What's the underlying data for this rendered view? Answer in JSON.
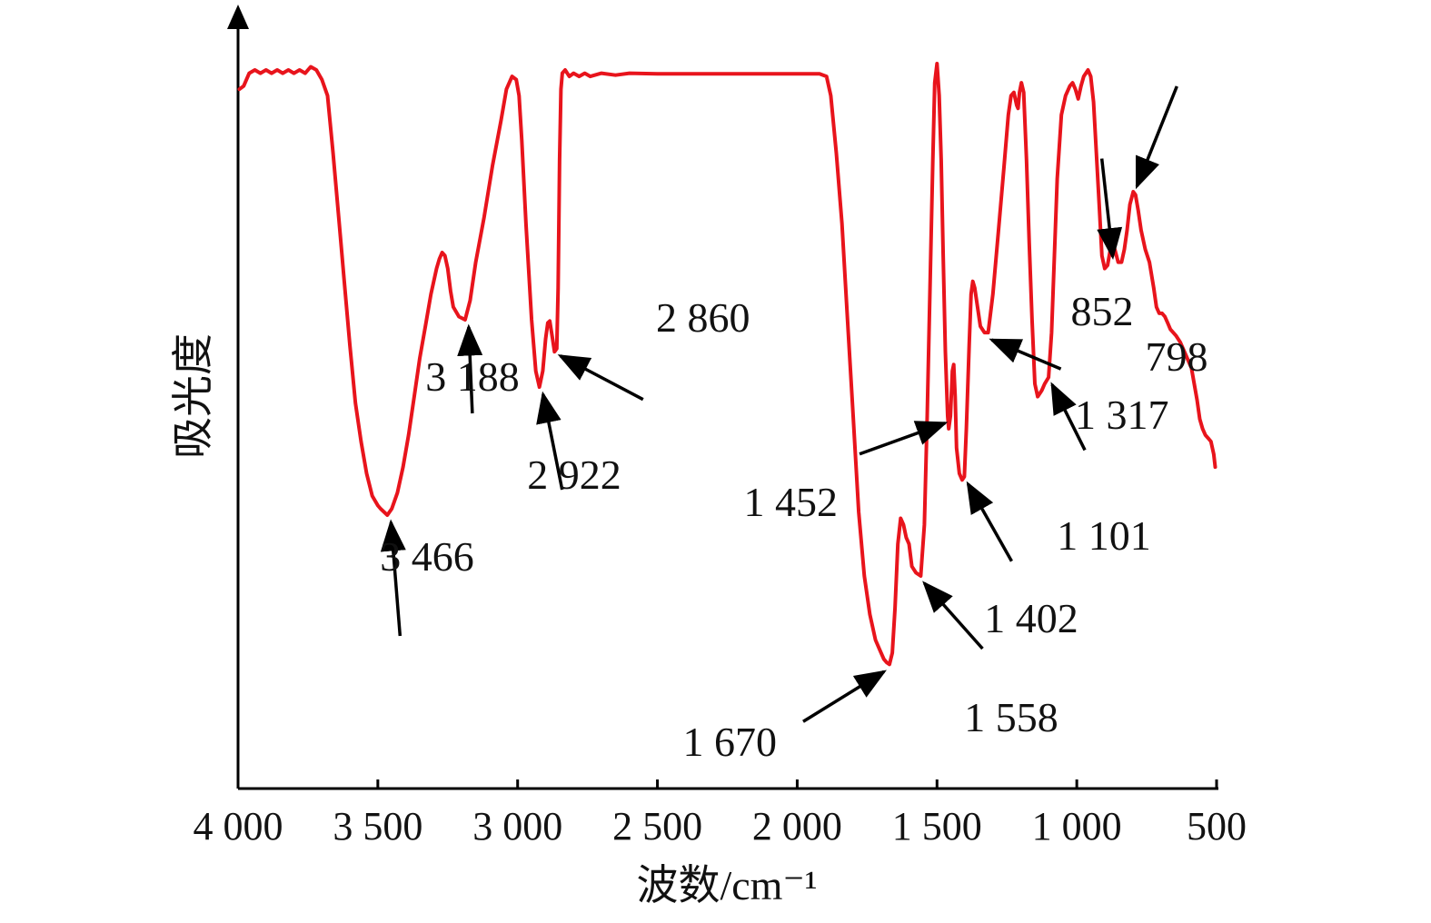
{
  "chart_data": {
    "type": "line",
    "title": "",
    "xlabel": "波数/cm⁻¹",
    "ylabel": "吸光度",
    "xlim": [
      4000,
      500
    ],
    "x_reversed": true,
    "y_ticks_shown": false,
    "grid": false,
    "x_ticks": [
      {
        "value": 4000,
        "label": "4 000"
      },
      {
        "value": 3500,
        "label": "3 500"
      },
      {
        "value": 3000,
        "label": "3 000"
      },
      {
        "value": 2500,
        "label": "2 500"
      },
      {
        "value": 2000,
        "label": "2 000"
      },
      {
        "value": 1500,
        "label": "1 500"
      },
      {
        "value": 1000,
        "label": "1 000"
      },
      {
        "value": 500,
        "label": "500"
      }
    ],
    "series": [
      {
        "color": "#e8141c",
        "points": [
          [
            3995,
            0.96
          ],
          [
            3980,
            0.965
          ],
          [
            3960,
            0.985
          ],
          [
            3940,
            0.99
          ],
          [
            3920,
            0.985
          ],
          [
            3900,
            0.99
          ],
          [
            3880,
            0.985
          ],
          [
            3860,
            0.99
          ],
          [
            3840,
            0.985
          ],
          [
            3820,
            0.99
          ],
          [
            3800,
            0.985
          ],
          [
            3780,
            0.99
          ],
          [
            3760,
            0.985
          ],
          [
            3740,
            0.995
          ],
          [
            3720,
            0.99
          ],
          [
            3700,
            0.975
          ],
          [
            3680,
            0.95
          ],
          [
            3660,
            0.86
          ],
          [
            3640,
            0.76
          ],
          [
            3620,
            0.66
          ],
          [
            3600,
            0.56
          ],
          [
            3580,
            0.47
          ],
          [
            3560,
            0.41
          ],
          [
            3540,
            0.36
          ],
          [
            3520,
            0.325
          ],
          [
            3500,
            0.31
          ],
          [
            3490,
            0.305
          ],
          [
            3466,
            0.295
          ],
          [
            3450,
            0.305
          ],
          [
            3430,
            0.33
          ],
          [
            3410,
            0.37
          ],
          [
            3390,
            0.42
          ],
          [
            3370,
            0.48
          ],
          [
            3350,
            0.54
          ],
          [
            3330,
            0.59
          ],
          [
            3310,
            0.64
          ],
          [
            3290,
            0.68
          ],
          [
            3280,
            0.695
          ],
          [
            3270,
            0.705
          ],
          [
            3260,
            0.7
          ],
          [
            3250,
            0.68
          ],
          [
            3240,
            0.645
          ],
          [
            3230,
            0.62
          ],
          [
            3210,
            0.605
          ],
          [
            3188,
            0.6
          ],
          [
            3170,
            0.63
          ],
          [
            3150,
            0.69
          ],
          [
            3120,
            0.76
          ],
          [
            3090,
            0.84
          ],
          [
            3060,
            0.91
          ],
          [
            3040,
            0.96
          ],
          [
            3020,
            0.98
          ],
          [
            3005,
            0.975
          ],
          [
            2995,
            0.95
          ],
          [
            2985,
            0.88
          ],
          [
            2970,
            0.75
          ],
          [
            2950,
            0.6
          ],
          [
            2935,
            0.52
          ],
          [
            2922,
            0.495
          ],
          [
            2910,
            0.52
          ],
          [
            2900,
            0.57
          ],
          [
            2892,
            0.595
          ],
          [
            2885,
            0.598
          ],
          [
            2875,
            0.57
          ],
          [
            2868,
            0.55
          ],
          [
            2860,
            0.555
          ],
          [
            2855,
            0.65
          ],
          [
            2850,
            0.85
          ],
          [
            2845,
            0.96
          ],
          [
            2840,
            0.985
          ],
          [
            2830,
            0.99
          ],
          [
            2815,
            0.98
          ],
          [
            2800,
            0.985
          ],
          [
            2780,
            0.98
          ],
          [
            2760,
            0.985
          ],
          [
            2740,
            0.98
          ],
          [
            2700,
            0.985
          ],
          [
            2650,
            0.982
          ],
          [
            2600,
            0.985
          ],
          [
            2500,
            0.984
          ],
          [
            2400,
            0.984
          ],
          [
            2300,
            0.984
          ],
          [
            2200,
            0.984
          ],
          [
            2100,
            0.984
          ],
          [
            2000,
            0.984
          ],
          [
            1920,
            0.984
          ],
          [
            1895,
            0.98
          ],
          [
            1880,
            0.95
          ],
          [
            1860,
            0.86
          ],
          [
            1840,
            0.75
          ],
          [
            1820,
            0.6
          ],
          [
            1800,
            0.45
          ],
          [
            1780,
            0.3
          ],
          [
            1760,
            0.2
          ],
          [
            1740,
            0.14
          ],
          [
            1720,
            0.1
          ],
          [
            1700,
            0.08
          ],
          [
            1690,
            0.07
          ],
          [
            1680,
            0.065
          ],
          [
            1670,
            0.062
          ],
          [
            1660,
            0.08
          ],
          [
            1650,
            0.15
          ],
          [
            1640,
            0.25
          ],
          [
            1630,
            0.29
          ],
          [
            1620,
            0.28
          ],
          [
            1610,
            0.26
          ],
          [
            1600,
            0.25
          ],
          [
            1590,
            0.215
          ],
          [
            1575,
            0.205
          ],
          [
            1558,
            0.2
          ],
          [
            1545,
            0.28
          ],
          [
            1535,
            0.45
          ],
          [
            1525,
            0.65
          ],
          [
            1515,
            0.85
          ],
          [
            1508,
            0.97
          ],
          [
            1500,
            1.0
          ],
          [
            1492,
            0.95
          ],
          [
            1485,
            0.85
          ],
          [
            1478,
            0.7
          ],
          [
            1470,
            0.55
          ],
          [
            1462,
            0.45
          ],
          [
            1458,
            0.43
          ],
          [
            1452,
            0.45
          ],
          [
            1445,
            0.52
          ],
          [
            1440,
            0.53
          ],
          [
            1435,
            0.48
          ],
          [
            1430,
            0.4
          ],
          [
            1420,
            0.36
          ],
          [
            1410,
            0.35
          ],
          [
            1402,
            0.355
          ],
          [
            1395,
            0.43
          ],
          [
            1385,
            0.56
          ],
          [
            1378,
            0.64
          ],
          [
            1372,
            0.66
          ],
          [
            1365,
            0.65
          ],
          [
            1355,
            0.62
          ],
          [
            1345,
            0.59
          ],
          [
            1330,
            0.58
          ],
          [
            1317,
            0.58
          ],
          [
            1300,
            0.64
          ],
          [
            1280,
            0.74
          ],
          [
            1260,
            0.84
          ],
          [
            1245,
            0.92
          ],
          [
            1235,
            0.95
          ],
          [
            1225,
            0.955
          ],
          [
            1215,
            0.935
          ],
          [
            1210,
            0.93
          ],
          [
            1205,
            0.955
          ],
          [
            1198,
            0.97
          ],
          [
            1190,
            0.955
          ],
          [
            1180,
            0.85
          ],
          [
            1170,
            0.72
          ],
          [
            1160,
            0.6
          ],
          [
            1150,
            0.5
          ],
          [
            1140,
            0.48
          ],
          [
            1125,
            0.49
          ],
          [
            1115,
            0.5
          ],
          [
            1101,
            0.51
          ],
          [
            1090,
            0.58
          ],
          [
            1080,
            0.7
          ],
          [
            1070,
            0.82
          ],
          [
            1055,
            0.92
          ],
          [
            1040,
            0.95
          ],
          [
            1025,
            0.965
          ],
          [
            1015,
            0.97
          ],
          [
            1005,
            0.96
          ],
          [
            995,
            0.945
          ],
          [
            985,
            0.965
          ],
          [
            975,
            0.98
          ],
          [
            960,
            0.99
          ],
          [
            950,
            0.98
          ],
          [
            940,
            0.94
          ],
          [
            930,
            0.86
          ],
          [
            920,
            0.78
          ],
          [
            910,
            0.7
          ],
          [
            900,
            0.68
          ],
          [
            890,
            0.685
          ],
          [
            880,
            0.71
          ],
          [
            872,
            0.72
          ],
          [
            864,
            0.71
          ],
          [
            852,
            0.69
          ],
          [
            840,
            0.69
          ],
          [
            830,
            0.71
          ],
          [
            820,
            0.74
          ],
          [
            810,
            0.78
          ],
          [
            798,
            0.8
          ],
          [
            790,
            0.795
          ],
          [
            780,
            0.77
          ],
          [
            770,
            0.74
          ],
          [
            755,
            0.71
          ],
          [
            740,
            0.69
          ],
          [
            725,
            0.65
          ],
          [
            715,
            0.62
          ],
          [
            705,
            0.61
          ],
          [
            695,
            0.61
          ],
          [
            685,
            0.605
          ],
          [
            675,
            0.595
          ],
          [
            665,
            0.585
          ],
          [
            655,
            0.58
          ],
          [
            645,
            0.575
          ],
          [
            630,
            0.565
          ],
          [
            620,
            0.555
          ],
          [
            610,
            0.545
          ],
          [
            600,
            0.535
          ],
          [
            590,
            0.525
          ],
          [
            580,
            0.5
          ],
          [
            570,
            0.475
          ],
          [
            560,
            0.445
          ],
          [
            550,
            0.43
          ],
          [
            540,
            0.42
          ],
          [
            530,
            0.415
          ],
          [
            520,
            0.41
          ],
          [
            510,
            0.39
          ],
          [
            505,
            0.37
          ]
        ]
      }
    ],
    "annotations": [
      {
        "wavenumber": 3466,
        "label": "3 466"
      },
      {
        "wavenumber": 3188,
        "label": "3 188"
      },
      {
        "wavenumber": 2922,
        "label": "2 922"
      },
      {
        "wavenumber": 2860,
        "label": "2 860"
      },
      {
        "wavenumber": 1670,
        "label": "1 670"
      },
      {
        "wavenumber": 1558,
        "label": "1 558"
      },
      {
        "wavenumber": 1452,
        "label": "1 452"
      },
      {
        "wavenumber": 1402,
        "label": "1 402"
      },
      {
        "wavenumber": 1317,
        "label": "1 317"
      },
      {
        "wavenumber": 1101,
        "label": "1 101"
      },
      {
        "wavenumber": 852,
        "label": "852"
      },
      {
        "wavenumber": 798,
        "label": "798"
      }
    ]
  }
}
